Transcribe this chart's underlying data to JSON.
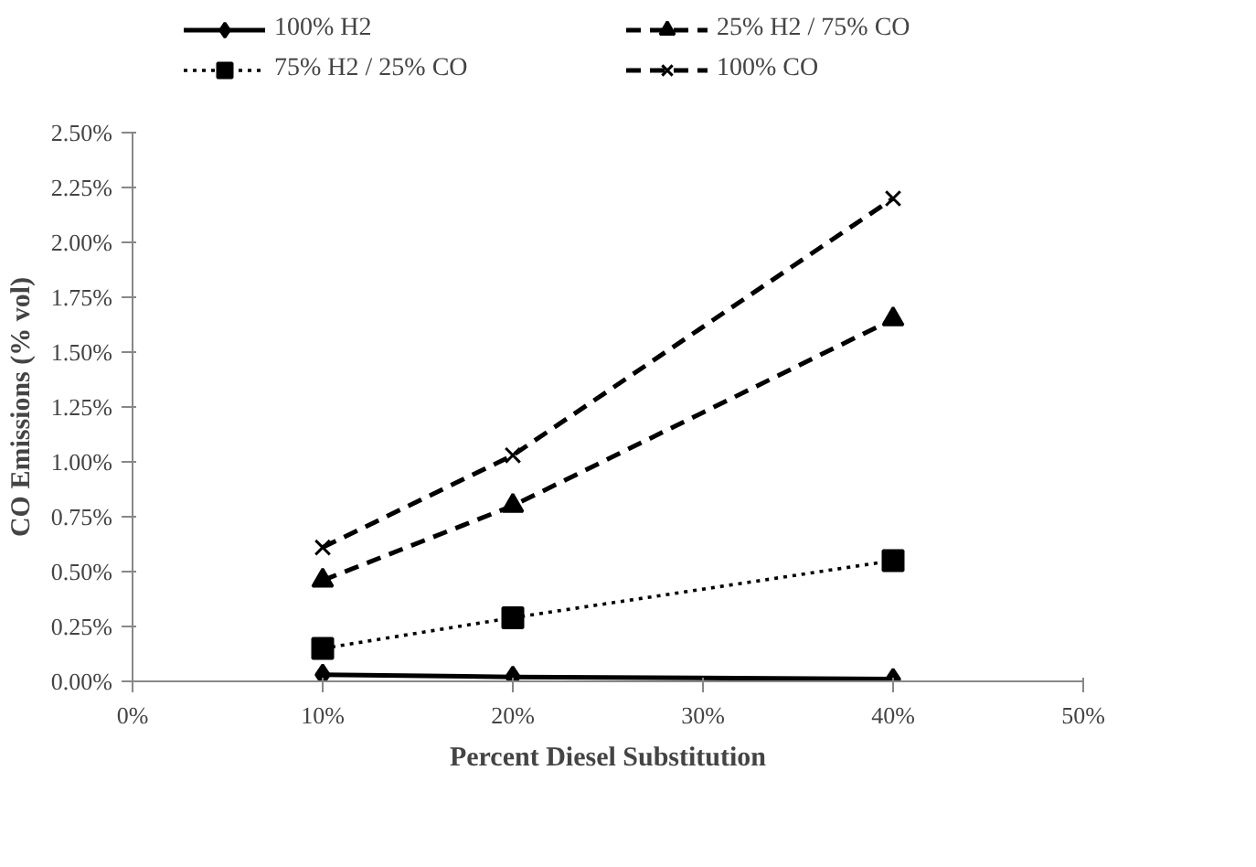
{
  "chart_data": {
    "type": "line",
    "xlabel": "Percent Diesel Substitution",
    "ylabel": "CO Emissions (% vol)",
    "x": [
      10,
      20,
      40
    ],
    "series": [
      {
        "name": "100% H2",
        "color": "#000000",
        "marker": "diamond",
        "line_style": "solid",
        "values": [
          0.03,
          0.02,
          0.01
        ]
      },
      {
        "name": "75% H2 / 25% CO",
        "color": "#000000",
        "marker": "square",
        "line_style": "dotted",
        "values": [
          0.15,
          0.29,
          0.55
        ]
      },
      {
        "name": "25% H2 / 75% CO",
        "color": "#000000",
        "marker": "triangle",
        "line_style": "dashed",
        "values": [
          0.46,
          0.8,
          1.65
        ]
      },
      {
        "name": "100% CO",
        "color": "#000000",
        "marker": "cross",
        "line_style": "dashed",
        "values": [
          0.61,
          1.03,
          2.2
        ]
      }
    ],
    "xlim": [
      0,
      50
    ],
    "xticks": [
      {
        "value": 0,
        "label": "0%"
      },
      {
        "value": 10,
        "label": "10%"
      },
      {
        "value": 20,
        "label": "20%"
      },
      {
        "value": 30,
        "label": "30%"
      },
      {
        "value": 40,
        "label": "40%"
      },
      {
        "value": 50,
        "label": "50%"
      }
    ],
    "ylim": [
      0,
      2.5
    ],
    "yticks": [
      {
        "value": 0,
        "label": "0.00%"
      },
      {
        "value": 0.25,
        "label": "0.25%"
      },
      {
        "value": 0.5,
        "label": "0.50%"
      },
      {
        "value": 0.75,
        "label": "0.75%"
      },
      {
        "value": 1,
        "label": "1.00%"
      },
      {
        "value": 1.25,
        "label": "1.25%"
      },
      {
        "value": 1.5,
        "label": "1.50%"
      },
      {
        "value": 1.75,
        "label": "1.75%"
      },
      {
        "value": 2,
        "label": "2.00%"
      },
      {
        "value": 2.25,
        "label": "2.25%"
      },
      {
        "value": 2.5,
        "label": "2.50%"
      }
    ],
    "grid": false,
    "legend": "top"
  }
}
